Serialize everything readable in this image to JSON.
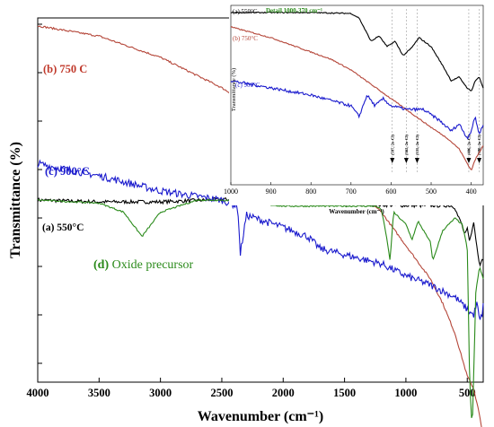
{
  "chart_data": [
    {
      "type": "line",
      "xlabel": "Wavenumber (cm⁻¹)",
      "ylabel": "Transmittance (%)",
      "xlim": [
        4000,
        370
      ],
      "x_reversed": true,
      "xticks": [
        "4000",
        "3500",
        "3000",
        "2500",
        "2000",
        "1500",
        "1000",
        "500"
      ],
      "yticks_labeled": false,
      "series": [
        {
          "name": "(a) 550°C",
          "color": "#000000",
          "x": [
            4000,
            3500,
            3000,
            2500,
            2000,
            1500,
            1200,
            1000,
            800,
            700,
            650,
            620,
            600,
            580,
            550,
            520,
            500,
            480,
            450,
            420,
            400,
            380,
            370
          ],
          "y": [
            100,
            99.4,
            99.4,
            100.2,
            99.8,
            98.8,
            98.4,
            98.2,
            98.2,
            98.2,
            98.2,
            98,
            97.6,
            95,
            92.6,
            88.4,
            90.4,
            86,
            93,
            84.2,
            78.4,
            81,
            80.4
          ]
        },
        {
          "name": "(b) 750 C",
          "color": "#b5473a",
          "x": [
            4000,
            3500,
            3000,
            2500,
            2000,
            1500,
            1200,
            1000,
            800,
            700,
            600,
            500,
            450,
            420,
            400,
            380,
            370
          ],
          "y": [
            157.4,
            154,
            147,
            137,
            124,
            108,
            96,
            85,
            74,
            66,
            56,
            42,
            38,
            33,
            29,
            24,
            22
          ]
        },
        {
          "name": "(c) 900°C",
          "color": "#1a1acd",
          "x": [
            4000,
            3500,
            3000,
            2500,
            2370,
            2350,
            2300,
            2000,
            1800,
            1700,
            1500,
            1200,
            1000,
            800,
            600,
            500,
            450,
            420,
            400,
            380,
            370
          ],
          "y": [
            112,
            108,
            103,
            100,
            98,
            82,
            95,
            91,
            88,
            84,
            82,
            79,
            75,
            72,
            68,
            64,
            62,
            66,
            60,
            62,
            66
          ]
        },
        {
          "name": "(d) Oxide precursor",
          "color": "#2a8a1a",
          "x": [
            4000,
            3500,
            3300,
            3150,
            3000,
            2700,
            2500,
            2000,
            1500,
            1250,
            1200,
            1150,
            1130,
            1100,
            1000,
            950,
            900,
            800,
            780,
            700,
            600,
            540,
            500,
            480,
            460,
            430,
            400,
            370
          ],
          "y": [
            100,
            99,
            96,
            88,
            96,
            100,
            100,
            98,
            98,
            98,
            97,
            86,
            80,
            96,
            92,
            87,
            93,
            86,
            80,
            90,
            94,
            92,
            84,
            40,
            24,
            70,
            78,
            74
          ]
        }
      ],
      "annotations": [
        "(b) 750 C",
        "(c) 900°C",
        "(a) 550°C",
        "(d) Oxide precursor"
      ]
    },
    {
      "type": "line",
      "title": "Detail 1000-370 cm⁻¹",
      "xlabel": "Wavenumber (cm⁻¹)",
      "ylabel": "Transmittance (%)",
      "xlim": [
        1000,
        370
      ],
      "x_reversed": true,
      "xticks": [
        "1000",
        "900",
        "800",
        "700",
        "600",
        "500",
        "400"
      ],
      "series": [
        {
          "name": "(a) 550°C",
          "color": "#000000",
          "x": [
            1000,
            800,
            700,
            680,
            650,
            630,
            610,
            590,
            570,
            550,
            530,
            500,
            470,
            450,
            430,
            410,
            400,
            390,
            380,
            370
          ],
          "y": [
            96,
            96,
            95.5,
            93,
            80,
            83,
            77,
            80,
            72,
            76,
            82,
            77,
            66,
            58,
            60,
            54,
            52,
            58,
            60,
            54
          ]
        },
        {
          "name": "(b) 750°C",
          "color": "#b5473a",
          "x": [
            1000,
            950,
            900,
            850,
            800,
            750,
            700,
            650,
            600,
            550,
            500,
            460,
            430,
            410,
            400,
            390,
            380,
            370
          ],
          "y": [
            88,
            85,
            82,
            78,
            74,
            70,
            64,
            56,
            48,
            40,
            32,
            26,
            20,
            12,
            8,
            14,
            18,
            22
          ]
        },
        {
          "name": "(c) 900°C",
          "color": "#1a1acd",
          "x": [
            1000,
            900,
            800,
            700,
            680,
            660,
            640,
            620,
            600,
            560,
            520,
            480,
            450,
            430,
            410,
            400,
            390,
            380,
            370
          ],
          "y": [
            58,
            54,
            50,
            44,
            38,
            50,
            44,
            48,
            44,
            42,
            42,
            36,
            30,
            34,
            26,
            30,
            38,
            28,
            34
          ]
        }
      ],
      "markers": [
        {
          "x": 597,
          "label": "(597, 2o-Cl)"
        },
        {
          "x": 562,
          "label": "(562, 2o-Cl)"
        },
        {
          "x": 535,
          "label": "(535, 2o-Cl)"
        },
        {
          "x": 406,
          "label": "(406, 2o-Cl)"
        },
        {
          "x": 380,
          "label": "(380, 2o-Cl)"
        }
      ]
    }
  ]
}
